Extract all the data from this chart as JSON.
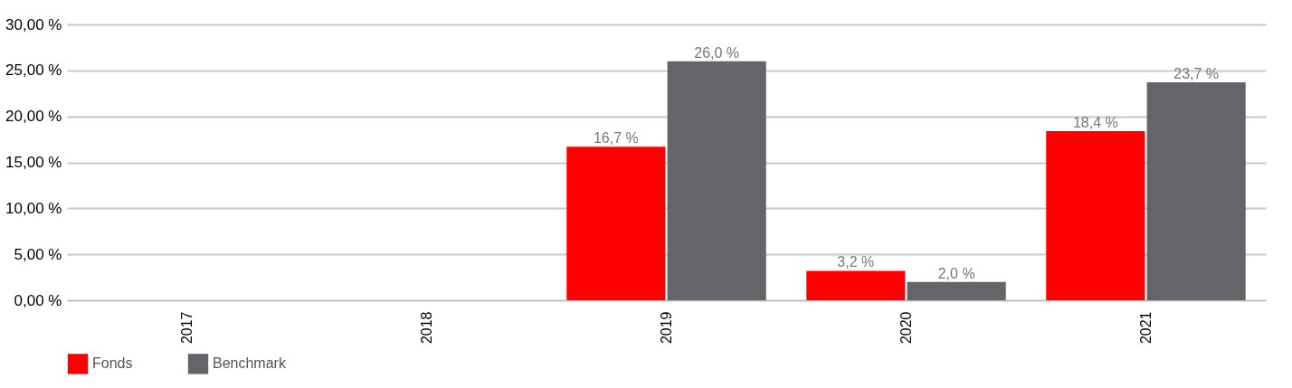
{
  "chart_data": {
    "type": "bar",
    "categories": [
      "2017",
      "2018",
      "2019",
      "2020",
      "2021"
    ],
    "series": [
      {
        "name": "Fonds",
        "color": "#ff0000",
        "values": [
          null,
          null,
          16.7,
          3.2,
          18.4
        ],
        "value_labels": [
          null,
          null,
          "16,7 %",
          "3,2 %",
          "18,4 %"
        ]
      },
      {
        "name": "Benchmark",
        "color": "#646469",
        "values": [
          null,
          null,
          26.0,
          2.0,
          23.7
        ],
        "value_labels": [
          null,
          null,
          "26,0 %",
          "2,0 %",
          "23,7 %"
        ]
      }
    ],
    "ylim": [
      0,
      30
    ],
    "yticks": [
      {
        "value": 0,
        "label": "0,00 %"
      },
      {
        "value": 5,
        "label": "5,00 %"
      },
      {
        "value": 10,
        "label": "10,00 %"
      },
      {
        "value": 15,
        "label": "15,00 %"
      },
      {
        "value": 20,
        "label": "20,00 %"
      },
      {
        "value": 25,
        "label": "25,00 %"
      },
      {
        "value": 30,
        "label": "30,00 %"
      }
    ],
    "grid": "y",
    "legend": "bottom"
  }
}
